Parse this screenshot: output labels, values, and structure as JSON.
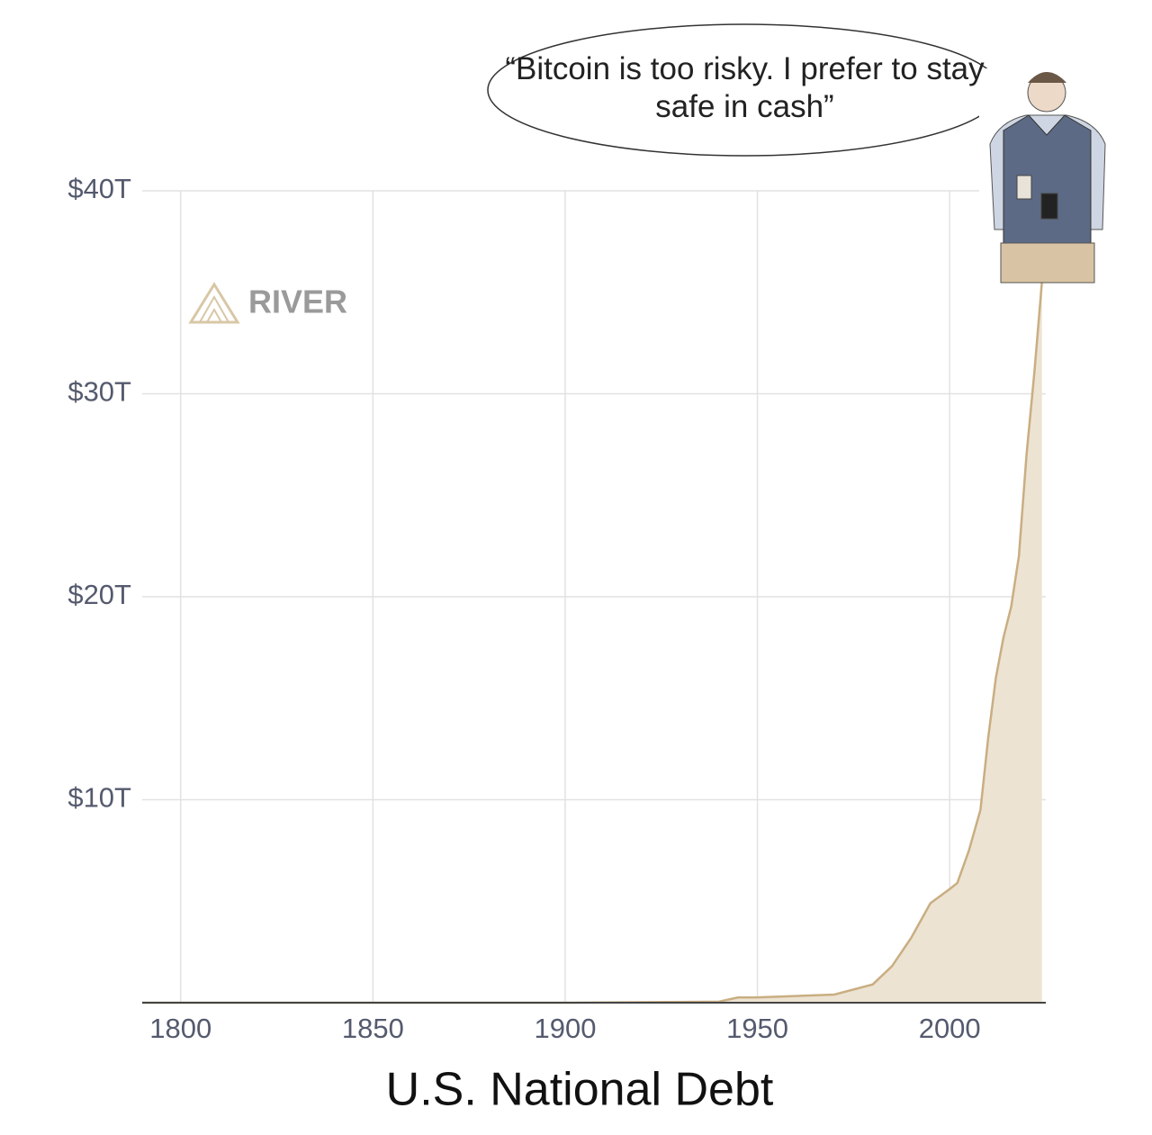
{
  "chart_data": {
    "type": "area",
    "title": "U.S. National Debt",
    "annotation": "“Bitcoin is too risky. I prefer to stay safe in cash”",
    "watermark": "RIVER",
    "x": [
      1790,
      1900,
      1940,
      1945,
      1950,
      1970,
      1980,
      1985,
      1990,
      1995,
      2000,
      2002,
      2005,
      2008,
      2010,
      2012,
      2014,
      2016,
      2018,
      2020,
      2022,
      2024
    ],
    "values": [
      0,
      0,
      0.05,
      0.26,
      0.26,
      0.4,
      0.9,
      1.8,
      3.2,
      4.9,
      5.6,
      5.9,
      7.5,
      9.5,
      13,
      16,
      18,
      19.5,
      22,
      27,
      31,
      35.5
    ],
    "color": "#c9ae82",
    "fill": "#ede3d3",
    "xlim": [
      1790,
      2025
    ],
    "xticks": [
      1800,
      1850,
      1900,
      1950,
      2000
    ],
    "ylim": [
      0,
      40
    ],
    "yticks": [
      {
        "value": 10,
        "label": "$10T"
      },
      {
        "value": 20,
        "label": "$20T"
      },
      {
        "value": 30,
        "label": "$30T"
      },
      {
        "value": 40,
        "label": "$40T"
      }
    ],
    "grid": true
  }
}
